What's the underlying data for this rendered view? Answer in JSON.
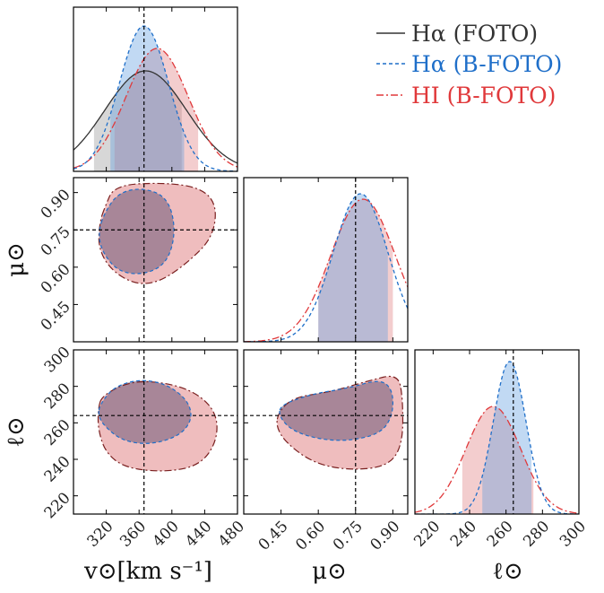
{
  "colors": {
    "foto": "#333333",
    "b_foto_halpha": "#1f6fc9",
    "b_foto_hi": "#e0393b",
    "fill_blue": "#5b9ae0",
    "fill_red": "#e07b7d",
    "overlap": "#6e5a78",
    "truth_line": "#000000"
  },
  "legend": {
    "entries": [
      {
        "label": "Hα (FOTO)",
        "style": "solid"
      },
      {
        "label": "Hα (B-FOTO)",
        "style": "dashed"
      },
      {
        "label": "HI  (B-FOTO)",
        "style": "dashdot"
      }
    ]
  },
  "axes": {
    "v": {
      "label": "v⊙[km s⁻¹]",
      "range": [
        280,
        480
      ],
      "ticks": [
        "320",
        "360",
        "400",
        "440",
        "480"
      ]
    },
    "mu": {
      "label": "μ⊙",
      "range": [
        0.3,
        0.96
      ],
      "ticks": [
        "0.45",
        "0.60",
        "0.75",
        "0.90"
      ]
    },
    "ell": {
      "label": "ℓ⊙",
      "range": [
        210,
        300
      ],
      "ticks": [
        "220",
        "240",
        "260",
        "280",
        "300"
      ]
    }
  },
  "chart_data": {
    "type": "corner",
    "parameters": [
      "v",
      "mu",
      "ell"
    ],
    "truth": {
      "v": 366,
      "mu": 0.75,
      "ell": 264
    },
    "series": [
      {
        "key": "foto",
        "name": "Hα (FOTO)",
        "v": {
          "mean": 368,
          "sigma": 50,
          "ci": [
            305,
            412
          ]
        }
      },
      {
        "key": "b_foto_halpha",
        "name": "Hα (B-FOTO)",
        "v": {
          "mean": 366,
          "sigma": 30,
          "ci": [
            325,
            415
          ]
        },
        "mu": {
          "mean": 0.77,
          "sigma": 0.11,
          "ci": [
            0.6,
            0.88
          ]
        },
        "ell": {
          "mean": 262,
          "sigma": 9,
          "ci": [
            247,
            274
          ]
        }
      },
      {
        "key": "b_foto_hi",
        "name": "HI (B-FOTO)",
        "v": {
          "mean": 382,
          "sigma": 38,
          "ci": [
            330,
            432
          ]
        },
        "mu": {
          "mean": 0.78,
          "sigma": 0.13,
          "ci": [
            0.6,
            0.9
          ]
        },
        "ell": {
          "mean": 253,
          "sigma": 15,
          "ci": [
            236,
            275
          ]
        }
      }
    ],
    "contours": {
      "mu_vs_v": [
        {
          "series": "b_foto_halpha",
          "points": [
            [
              318,
              0.82
            ],
            [
              335,
              0.9
            ],
            [
              365,
              0.92
            ],
            [
              395,
              0.88
            ],
            [
              405,
              0.75
            ],
            [
              395,
              0.62
            ],
            [
              368,
              0.57
            ],
            [
              335,
              0.58
            ],
            [
              315,
              0.66
            ],
            [
              310,
              0.74
            ]
          ]
        },
        {
          "series": "b_foto_hi",
          "points": [
            [
              318,
              0.84
            ],
            [
              330,
              0.93
            ],
            [
              390,
              0.94
            ],
            [
              435,
              0.92
            ],
            [
              455,
              0.85
            ],
            [
              450,
              0.72
            ],
            [
              420,
              0.62
            ],
            [
              385,
              0.54
            ],
            [
              355,
              0.53
            ],
            [
              325,
              0.59
            ],
            [
              310,
              0.68
            ],
            [
              312,
              0.78
            ]
          ]
        }
      ],
      "ell_vs_v": [
        {
          "series": "b_foto_halpha",
          "points": [
            [
              312,
              270
            ],
            [
              330,
              280
            ],
            [
              362,
              284
            ],
            [
              395,
              281
            ],
            [
              420,
              272
            ],
            [
              425,
              262
            ],
            [
              410,
              253
            ],
            [
              375,
              248
            ],
            [
              340,
              250
            ],
            [
              318,
              258
            ],
            [
              310,
              264
            ]
          ]
        },
        {
          "series": "b_foto_hi",
          "points": [
            [
              315,
              275
            ],
            [
              350,
              283
            ],
            [
              395,
              282
            ],
            [
              432,
              276
            ],
            [
              455,
              265
            ],
            [
              455,
              250
            ],
            [
              435,
              237
            ],
            [
              395,
              233
            ],
            [
              345,
              235
            ],
            [
              320,
              243
            ],
            [
              310,
              256
            ],
            [
              310,
              268
            ]
          ]
        }
      ],
      "ell_vs_mu": [
        {
          "series": "b_foto_halpha",
          "points": [
            [
              0.45,
              270
            ],
            [
              0.58,
              276
            ],
            [
              0.72,
              279
            ],
            [
              0.85,
              284
            ],
            [
              0.9,
              278
            ],
            [
              0.9,
              264
            ],
            [
              0.85,
              254
            ],
            [
              0.72,
              250
            ],
            [
              0.6,
              251
            ],
            [
              0.49,
              256
            ],
            [
              0.44,
              264
            ]
          ]
        },
        {
          "series": "b_foto_hi",
          "points": [
            [
              0.44,
              266
            ],
            [
              0.5,
              274
            ],
            [
              0.65,
              277
            ],
            [
              0.8,
              283
            ],
            [
              0.92,
              287
            ],
            [
              0.94,
              274
            ],
            [
              0.94,
              248
            ],
            [
              0.88,
              236
            ],
            [
              0.72,
              234
            ],
            [
              0.58,
              238
            ],
            [
              0.47,
              249
            ],
            [
              0.43,
              258
            ]
          ]
        }
      ]
    }
  }
}
